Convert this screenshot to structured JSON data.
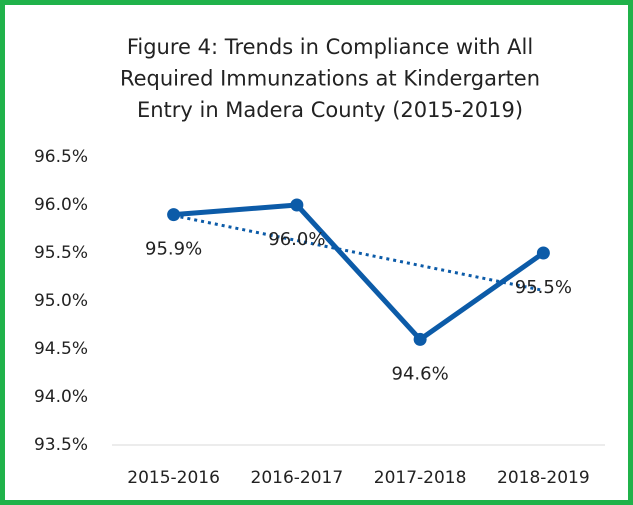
{
  "chart_data": {
    "type": "line",
    "title": [
      "Figure 4: Trends in Compliance with All",
      "Required Immunzations at Kindergarten",
      "Entry in Madera County (2015-2019)"
    ],
    "categories": [
      "2015-2016",
      "2016-2017",
      "2017-2018",
      "2018-2019"
    ],
    "series": [
      {
        "color": "#0c5ba8",
        "values": [
          95.9,
          96.0,
          94.6,
          95.5
        ],
        "value_labels": [
          "95.9%",
          "96.0%",
          "94.6%",
          "95.5%"
        ]
      }
    ],
    "trendline": "linear",
    "ylim": [
      93.5,
      96.5
    ],
    "yticks": [
      {
        "value": 93.5,
        "label": "93.5%"
      },
      {
        "value": 94.0,
        "label": "94.0%"
      },
      {
        "value": 94.5,
        "label": "94.5%"
      },
      {
        "value": 95.0,
        "label": "95.0%"
      },
      {
        "value": 95.5,
        "label": "95.5%"
      },
      {
        "value": 96.0,
        "label": "96.0%"
      },
      {
        "value": 96.5,
        "label": "96.5%"
      }
    ],
    "grid": false,
    "border_color": "#20b24a"
  }
}
